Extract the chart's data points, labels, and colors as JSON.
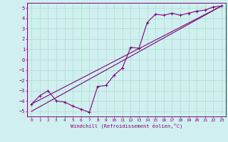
{
  "title": "",
  "xlabel": "Windchill (Refroidissement éolien,°C)",
  "bg_color": "#cff0ee",
  "line_color": "#800080",
  "grid_color": "#aaddcc",
  "xlim": [
    -0.5,
    23.5
  ],
  "ylim": [
    -5.5,
    5.5
  ],
  "yticks": [
    -5,
    -4,
    -3,
    -2,
    -1,
    0,
    1,
    2,
    3,
    4,
    5
  ],
  "xticks": [
    0,
    1,
    2,
    3,
    4,
    5,
    6,
    7,
    8,
    9,
    10,
    11,
    12,
    13,
    14,
    15,
    16,
    17,
    18,
    19,
    20,
    21,
    22,
    23
  ],
  "data_line": {
    "x": [
      0,
      1,
      2,
      3,
      4,
      5,
      6,
      7,
      8,
      9,
      10,
      11,
      12,
      13,
      14,
      15,
      16,
      17,
      18,
      19,
      20,
      21,
      22,
      23
    ],
    "y": [
      -4.3,
      -3.5,
      -3.0,
      -4.0,
      -4.1,
      -4.5,
      -4.8,
      -5.1,
      -2.6,
      -2.5,
      -1.5,
      -0.8,
      1.2,
      1.1,
      3.6,
      4.4,
      4.3,
      4.5,
      4.3,
      4.5,
      4.7,
      4.8,
      5.1,
      5.2
    ]
  },
  "reg_line1": {
    "x": [
      0,
      23
    ],
    "y": [
      -4.3,
      5.2
    ]
  },
  "reg_line2": {
    "x": [
      0,
      23
    ],
    "y": [
      -5.0,
      5.2
    ]
  }
}
